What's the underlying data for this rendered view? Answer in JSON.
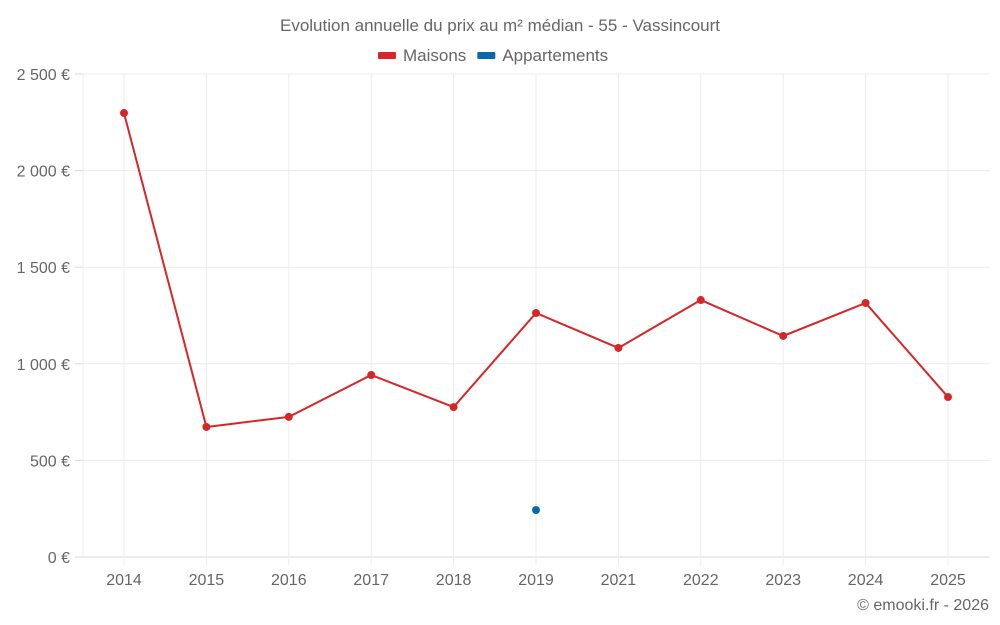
{
  "chart_data": {
    "type": "line",
    "title": "Evolution annuelle du prix au m² médian - 55 - Vassincourt",
    "xlabel": "",
    "ylabel": "",
    "categories": [
      "2014",
      "2015",
      "2016",
      "2017",
      "2018",
      "2019",
      "2021",
      "2022",
      "2023",
      "2024",
      "2025"
    ],
    "series": [
      {
        "name": "Maisons",
        "color": "#d62728",
        "values": [
          2298,
          673,
          725,
          942,
          776,
          1263,
          1082,
          1330,
          1144,
          1315,
          828
        ]
      },
      {
        "name": "Appartements",
        "color": "#0868ac",
        "values": [
          null,
          null,
          null,
          null,
          null,
          243,
          null,
          null,
          null,
          null,
          null
        ]
      }
    ],
    "ylim": [
      0,
      2500
    ],
    "yticks": [
      0,
      500,
      1000,
      1500,
      2000,
      2500
    ],
    "ytick_labels": [
      "0 €",
      "500 €",
      "1 000 €",
      "1 500 €",
      "2 000 €",
      "2 500 €"
    ],
    "grid": true,
    "legend_position": "top"
  },
  "credit": "© emooki.fr - 2026"
}
